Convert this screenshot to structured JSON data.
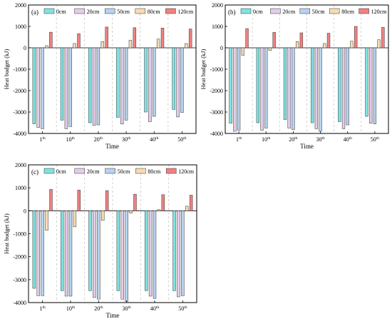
{
  "chart_data": [
    {
      "type": "bar",
      "panel_label": "(a)",
      "categories": [
        "1th",
        "10th",
        "20th",
        "30th",
        "40th",
        "50th"
      ],
      "xlabel": "Time",
      "ylabel": "Heat budget (kJ)",
      "ylim": [
        -4000,
        2000
      ],
      "yticks": [
        -4000,
        -3000,
        -2000,
        -1000,
        0,
        1000,
        2000
      ],
      "grid": false,
      "legend_position": "top",
      "series": [
        {
          "name": "0cm",
          "color": "#7fe3e3",
          "values": [
            -3550,
            -3380,
            -3500,
            -3250,
            -3000,
            -2880
          ]
        },
        {
          "name": "20cm",
          "color": "#e2cdea",
          "values": [
            -3720,
            -3780,
            -3620,
            -3560,
            -3450,
            -3230
          ]
        },
        {
          "name": "50cm",
          "color": "#b5d3ef",
          "values": [
            -3780,
            -3680,
            -3600,
            -3380,
            -3200,
            -3020
          ]
        },
        {
          "name": "80cm",
          "color": "#f8dbb3",
          "values": [
            100,
            200,
            290,
            360,
            410,
            200
          ]
        },
        {
          "name": "120cm",
          "color": "#f47f7f",
          "values": [
            730,
            660,
            970,
            940,
            920,
            880
          ]
        }
      ]
    },
    {
      "type": "bar",
      "panel_label": "(b)",
      "categories": [
        "1th",
        "10th",
        "20th",
        "30th",
        "40th",
        "50th"
      ],
      "xlabel": "Time",
      "ylabel": "Heat budget (kJ)",
      "ylim": [
        -4000,
        2000
      ],
      "yticks": [
        -4000,
        -3000,
        -2000,
        -1000,
        0,
        1000,
        2000
      ],
      "grid": false,
      "legend_position": "top",
      "series": [
        {
          "name": "0cm",
          "color": "#7fe3e3",
          "values": [
            -3520,
            -3500,
            -3350,
            -3500,
            -3450,
            -3200
          ]
        },
        {
          "name": "20cm",
          "color": "#e2cdea",
          "values": [
            -3900,
            -3850,
            -3750,
            -3780,
            -3780,
            -3520
          ]
        },
        {
          "name": "50cm",
          "color": "#b5d3ef",
          "values": [
            -3850,
            -3750,
            -3820,
            -3900,
            -3600,
            -3550
          ]
        },
        {
          "name": "80cm",
          "color": "#f8dbb3",
          "values": [
            -350,
            -120,
            290,
            200,
            310,
            380
          ]
        },
        {
          "name": "120cm",
          "color": "#f47f7f",
          "values": [
            900,
            720,
            700,
            680,
            1000,
            960
          ]
        }
      ]
    },
    {
      "type": "bar",
      "panel_label": "(c)",
      "categories": [
        "1th",
        "10th",
        "20th",
        "30th",
        "40th",
        "50th"
      ],
      "xlabel": "Time",
      "ylabel": "Heat budget (kJ)",
      "ylim": [
        -4000,
        2000
      ],
      "yticks": [
        -4000,
        -3000,
        -2000,
        -1000,
        0,
        1000,
        2000
      ],
      "grid": false,
      "legend_position": "top",
      "series": [
        {
          "name": "0cm",
          "color": "#7fe3e3",
          "values": [
            -3380,
            -3480,
            -3480,
            -3480,
            -3480,
            -3480
          ]
        },
        {
          "name": "20cm",
          "color": "#e2cdea",
          "values": [
            -3700,
            -3720,
            -3780,
            -3850,
            -3720,
            -3750
          ]
        },
        {
          "name": "50cm",
          "color": "#b5d3ef",
          "values": [
            -3700,
            -3720,
            -3850,
            -3950,
            -3820,
            -3700
          ]
        },
        {
          "name": "80cm",
          "color": "#f8dbb3",
          "values": [
            -850,
            -700,
            -420,
            -100,
            50,
            200
          ]
        },
        {
          "name": "120cm",
          "color": "#f47f7f",
          "values": [
            930,
            900,
            880,
            720,
            700,
            680
          ]
        }
      ]
    }
  ]
}
